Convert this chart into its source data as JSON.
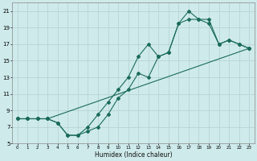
{
  "xlabel": "Humidex (Indice chaleur)",
  "bg_color": "#ceeaea",
  "grid_color": "#b8d4d4",
  "line_color": "#1a6b5a",
  "xlim": [
    -0.5,
    23.5
  ],
  "ylim": [
    5,
    22
  ],
  "yticks": [
    5,
    7,
    9,
    11,
    13,
    15,
    17,
    19,
    21
  ],
  "xticks": [
    0,
    1,
    2,
    3,
    4,
    5,
    6,
    7,
    8,
    9,
    10,
    11,
    12,
    13,
    14,
    15,
    16,
    17,
    18,
    19,
    20,
    21,
    22,
    23
  ],
  "line1_x": [
    0,
    1,
    2,
    3,
    4,
    5,
    6,
    7,
    8,
    9,
    10,
    11,
    12,
    13,
    14,
    15,
    16,
    17,
    18,
    19,
    20,
    21,
    22,
    23
  ],
  "line1_y": [
    8,
    8,
    8,
    8,
    7.5,
    6,
    6,
    7,
    8.5,
    10,
    11.5,
    13,
    15.5,
    17,
    15.5,
    16,
    19.5,
    21,
    20,
    19.5,
    17,
    17.5,
    17,
    16.5
  ],
  "line2_x": [
    0,
    1,
    2,
    3,
    4,
    5,
    6,
    7,
    8,
    9,
    10,
    11,
    12,
    13,
    14,
    15,
    16,
    17,
    18,
    19,
    20,
    21,
    22,
    23
  ],
  "line2_y": [
    8,
    8,
    8,
    8,
    7.5,
    6,
    6,
    6.5,
    7,
    8.5,
    10.5,
    11.5,
    13.5,
    13,
    15.5,
    16,
    19.5,
    20,
    20,
    20,
    17,
    17.5,
    17,
    16.5
  ],
  "line3_x": [
    0,
    1,
    2,
    3,
    23
  ],
  "line3_y": [
    8,
    8,
    8,
    8,
    16.5
  ]
}
